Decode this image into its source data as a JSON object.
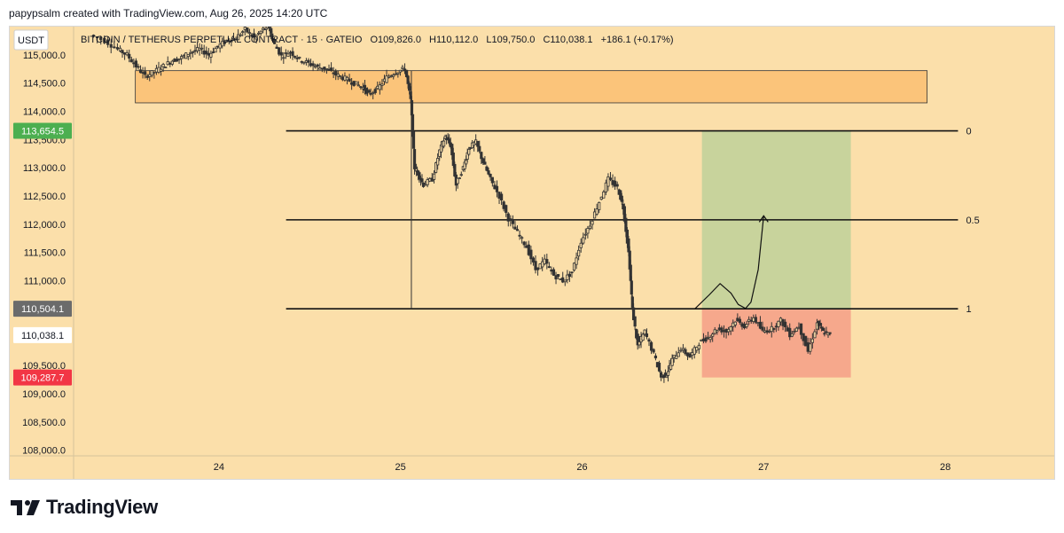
{
  "header": {
    "attribution": "papypsalm created with TradingView.com, Aug 26, 2025 14:20 UTC"
  },
  "brand": {
    "logo_text": "TradingView"
  },
  "colors": {
    "background": "#fbdfaa",
    "candle": "#333333",
    "zone": "#fbc47a",
    "target_zone": "#c8d39c",
    "stop_zone": "#f6a88c",
    "badge_green": "#4caf50",
    "badge_gray": "#6b6b6b",
    "badge_red": "#f23645"
  },
  "chart_data": {
    "type": "candlestick",
    "currency": "USDT",
    "legend": {
      "symbol": "BITCOIN / TETHERUS PERPETUAL CONTRACT · 15 · GATEIO",
      "open": "O109,826.0",
      "high": "H110,112.0",
      "low": "L109,750.0",
      "close": "C110,038.1",
      "change": "+186.1 (+0.17%)"
    },
    "x_axis": {
      "ticks": [
        {
          "label": "24",
          "day": 24
        },
        {
          "label": "25",
          "day": 25
        },
        {
          "label": "26",
          "day": 26
        },
        {
          "label": "27",
          "day": 27
        },
        {
          "label": "28",
          "day": 28
        }
      ],
      "range_days": [
        23.2,
        28.6
      ]
    },
    "y_axis": {
      "ticks": [
        "115,000.0",
        "114,500.0",
        "114,000.0",
        "113,500.0",
        "113,000.0",
        "112,500.0",
        "112,000.0",
        "111,500.0",
        "111,000.0",
        "110,500.0",
        "110,000.0",
        "109,500.0",
        "109,000.0",
        "108,500.0",
        "108,000.0"
      ],
      "range": [
        107900,
        115500
      ]
    },
    "price_badges": [
      {
        "label": "113,654.5",
        "value": 113654.5,
        "color": "green"
      },
      {
        "label": "110,504.1",
        "value": 110504.1,
        "color": "gray"
      },
      {
        "label": "110,038.1",
        "value": 110038.1,
        "color": "white"
      },
      {
        "label": "109,287.7",
        "value": 109287.7,
        "color": "red"
      }
    ],
    "fib_levels": [
      {
        "label": "0",
        "value": 113654.5
      },
      {
        "label": "0.5",
        "value": 112079
      },
      {
        "label": "1",
        "value": 110504.1
      }
    ],
    "fib_span_days": [
      24.37,
      28.07
    ],
    "supply_zone": {
      "day_start": 23.54,
      "day_end": 27.9,
      "top": 114720,
      "bottom": 114150
    },
    "long_position": {
      "day_start": 26.66,
      "day_end": 27.48,
      "entry": 110504.1,
      "target": 113654.5,
      "stop": 109287.7
    },
    "projection_path": [
      [
        26.62,
        110500
      ],
      [
        26.7,
        110750
      ],
      [
        26.76,
        110950
      ],
      [
        26.82,
        110780
      ],
      [
        26.86,
        110580
      ],
      [
        26.9,
        110510
      ],
      [
        26.93,
        110620
      ],
      [
        26.97,
        111200
      ],
      [
        27.0,
        112150
      ]
    ],
    "price_series": [
      [
        23.3,
        115350
      ],
      [
        23.38,
        115250
      ],
      [
        23.45,
        115100
      ],
      [
        23.5,
        115000
      ],
      [
        23.55,
        114800
      ],
      [
        23.6,
        114620
      ],
      [
        23.65,
        114700
      ],
      [
        23.7,
        114800
      ],
      [
        23.75,
        114900
      ],
      [
        23.8,
        114950
      ],
      [
        23.85,
        115050
      ],
      [
        23.9,
        115100
      ],
      [
        23.95,
        115000
      ],
      [
        24.0,
        115150
      ],
      [
        24.05,
        115250
      ],
      [
        24.1,
        115300
      ],
      [
        24.15,
        115450
      ],
      [
        24.2,
        115300
      ],
      [
        24.25,
        115450
      ],
      [
        24.28,
        115500
      ],
      [
        24.3,
        115250
      ],
      [
        24.35,
        114980
      ],
      [
        24.4,
        115050
      ],
      [
        24.45,
        114920
      ],
      [
        24.5,
        114850
      ],
      [
        24.55,
        114780
      ],
      [
        24.6,
        114750
      ],
      [
        24.65,
        114650
      ],
      [
        24.7,
        114580
      ],
      [
        24.75,
        114500
      ],
      [
        24.8,
        114420
      ],
      [
        24.83,
        114300
      ],
      [
        24.88,
        114400
      ],
      [
        24.93,
        114600
      ],
      [
        24.98,
        114700
      ],
      [
        25.03,
        114750
      ],
      [
        25.06,
        114200
      ],
      [
        25.08,
        113000
      ],
      [
        25.1,
        112900
      ],
      [
        25.13,
        112700
      ],
      [
        25.18,
        112800
      ],
      [
        25.22,
        113300
      ],
      [
        25.25,
        113550
      ],
      [
        25.28,
        113400
      ],
      [
        25.31,
        112700
      ],
      [
        25.35,
        113000
      ],
      [
        25.38,
        113350
      ],
      [
        25.42,
        113450
      ],
      [
        25.46,
        113100
      ],
      [
        25.5,
        112800
      ],
      [
        25.55,
        112500
      ],
      [
        25.6,
        112100
      ],
      [
        25.65,
        111850
      ],
      [
        25.7,
        111600
      ],
      [
        25.75,
        111200
      ],
      [
        25.8,
        111350
      ],
      [
        25.85,
        111100
      ],
      [
        25.9,
        111000
      ],
      [
        25.95,
        111150
      ],
      [
        26.0,
        111700
      ],
      [
        26.05,
        112000
      ],
      [
        26.1,
        112400
      ],
      [
        26.15,
        112800
      ],
      [
        26.2,
        112650
      ],
      [
        26.23,
        112300
      ],
      [
        26.26,
        111500
      ],
      [
        26.28,
        110500
      ],
      [
        26.31,
        109850
      ],
      [
        26.35,
        110100
      ],
      [
        26.4,
        109700
      ],
      [
        26.44,
        109300
      ],
      [
        26.47,
        109350
      ],
      [
        26.5,
        109600
      ],
      [
        26.55,
        109800
      ],
      [
        26.6,
        109650
      ],
      [
        26.65,
        109900
      ],
      [
        26.7,
        110000
      ],
      [
        26.75,
        110150
      ],
      [
        26.8,
        110100
      ],
      [
        26.85,
        110300
      ],
      [
        26.9,
        110200
      ],
      [
        26.95,
        110350
      ],
      [
        27.0,
        110100
      ],
      [
        27.05,
        110150
      ],
      [
        27.1,
        110300
      ],
      [
        27.15,
        110050
      ],
      [
        27.2,
        110200
      ],
      [
        27.25,
        109750
      ],
      [
        27.3,
        110250
      ],
      [
        27.33,
        110100
      ],
      [
        27.37,
        110038
      ]
    ]
  }
}
